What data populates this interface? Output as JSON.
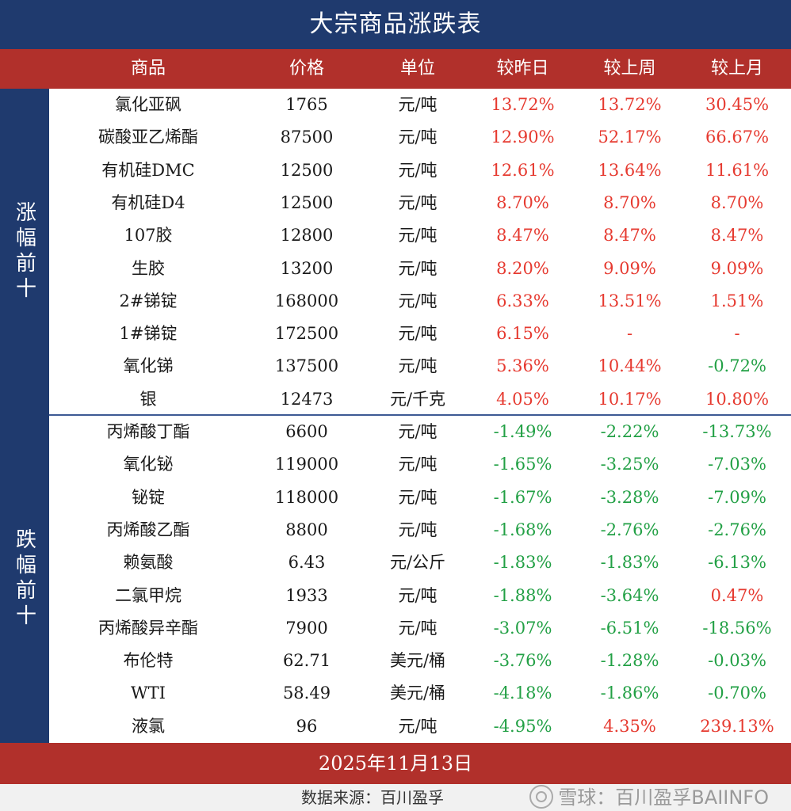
{
  "title": "大宗商品涨跌表",
  "headers": {
    "name": "商品",
    "price": "价格",
    "unit": "单位",
    "day": "较昨日",
    "week": "较上周",
    "month": "较上月"
  },
  "side_labels": {
    "top": "涨幅前十",
    "bottom": "跌幅前十"
  },
  "rows": [
    {
      "name": "氯化亚砜",
      "price": "1765",
      "unit": "元/吨",
      "day": "13.72%",
      "week": "13.72%",
      "month": "30.45%"
    },
    {
      "name": "碳酸亚乙烯酯",
      "price": "87500",
      "unit": "元/吨",
      "day": "12.90%",
      "week": "52.17%",
      "month": "66.67%"
    },
    {
      "name": "有机硅DMC",
      "price": "12500",
      "unit": "元/吨",
      "day": "12.61%",
      "week": "13.64%",
      "month": "11.61%"
    },
    {
      "name": "有机硅D4",
      "price": "12500",
      "unit": "元/吨",
      "day": "8.70%",
      "week": "8.70%",
      "month": "8.70%"
    },
    {
      "name": "107胶",
      "price": "12800",
      "unit": "元/吨",
      "day": "8.47%",
      "week": "8.47%",
      "month": "8.47%"
    },
    {
      "name": "生胶",
      "price": "13200",
      "unit": "元/吨",
      "day": "8.20%",
      "week": "9.09%",
      "month": "9.09%"
    },
    {
      "name": "2#锑锭",
      "price": "168000",
      "unit": "元/吨",
      "day": "6.33%",
      "week": "13.51%",
      "month": "1.51%"
    },
    {
      "name": "1#锑锭",
      "price": "172500",
      "unit": "元/吨",
      "day": "6.15%",
      "week": "-",
      "month": "-"
    },
    {
      "name": "氧化锑",
      "price": "137500",
      "unit": "元/吨",
      "day": "5.36%",
      "week": "10.44%",
      "month": "-0.72%"
    },
    {
      "name": "银",
      "price": "12473",
      "unit": "元/千克",
      "day": "4.05%",
      "week": "10.17%",
      "month": "10.80%"
    },
    {
      "name": "丙烯酸丁酯",
      "price": "6600",
      "unit": "元/吨",
      "day": "-1.49%",
      "week": "-2.22%",
      "month": "-13.73%"
    },
    {
      "name": "氧化铋",
      "price": "119000",
      "unit": "元/吨",
      "day": "-1.65%",
      "week": "-3.25%",
      "month": "-7.03%"
    },
    {
      "name": "铋锭",
      "price": "118000",
      "unit": "元/吨",
      "day": "-1.67%",
      "week": "-3.28%",
      "month": "-7.09%"
    },
    {
      "name": "丙烯酸乙酯",
      "price": "8800",
      "unit": "元/吨",
      "day": "-1.68%",
      "week": "-2.76%",
      "month": "-2.76%"
    },
    {
      "name": "赖氨酸",
      "price": "6.43",
      "unit": "元/公斤",
      "day": "-1.83%",
      "week": "-1.83%",
      "month": "-6.13%"
    },
    {
      "name": "二氯甲烷",
      "price": "1933",
      "unit": "元/吨",
      "day": "-1.88%",
      "week": "-3.64%",
      "month": "0.47%"
    },
    {
      "name": "丙烯酸异辛酯",
      "price": "7900",
      "unit": "元/吨",
      "day": "-3.07%",
      "week": "-6.51%",
      "month": "-18.56%"
    },
    {
      "name": "布伦特",
      "price": "62.71",
      "unit": "美元/桶",
      "day": "-3.76%",
      "week": "-1.28%",
      "month": "-0.03%"
    },
    {
      "name": "WTI",
      "price": "58.49",
      "unit": "美元/桶",
      "day": "-4.18%",
      "week": "-1.86%",
      "month": "-0.70%"
    },
    {
      "name": "液氯",
      "price": "96",
      "unit": "元/吨",
      "day": "-4.95%",
      "week": "4.35%",
      "month": "239.13%"
    }
  ],
  "date": "2025年11月13日",
  "source": "数据来源：百川盈孚",
  "watermark": "雪球：百川盈孚BAIINFO",
  "colors": {
    "navy": "#1f3a6e",
    "red_band": "#b1302b",
    "up": "#e63a30",
    "down": "#22a045"
  }
}
